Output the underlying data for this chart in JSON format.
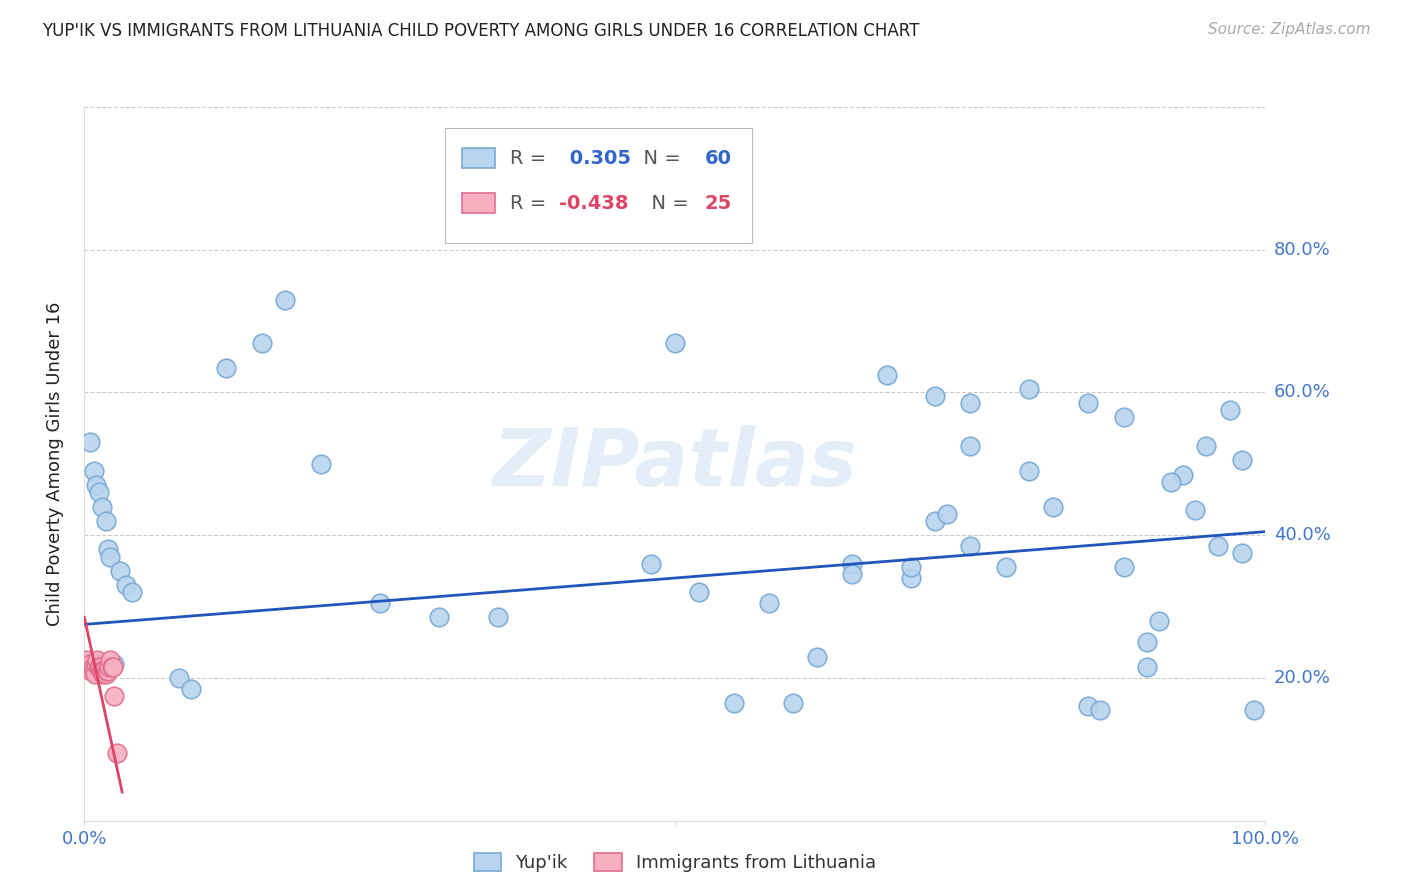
{
  "title": "YUP'IK VS IMMIGRANTS FROM LITHUANIA CHILD POVERTY AMONG GIRLS UNDER 16 CORRELATION CHART",
  "source": "Source: ZipAtlas.com",
  "ylabel": "Child Poverty Among Girls Under 16",
  "watermark": "ZIPatlas",
  "yupik_R": 0.305,
  "yupik_N": 60,
  "lithuania_R": -0.438,
  "lithuania_N": 25,
  "yupik_color": "#b8d4ee",
  "yupik_edge_color": "#7aaad4",
  "lithuania_color": "#f8b0c0",
  "lithuania_edge_color": "#e07090",
  "trend_blue": "#2255bb",
  "trend_pink": "#dd4466",
  "yupik_x": [
    0.005,
    0.008,
    0.01,
    0.012,
    0.015,
    0.018,
    0.02,
    0.022,
    0.025,
    0.03,
    0.035,
    0.04,
    0.08,
    0.09,
    0.12,
    0.15,
    0.17,
    0.2,
    0.25,
    0.3,
    0.35,
    0.48,
    0.5,
    0.52,
    0.55,
    0.58,
    0.6,
    0.62,
    0.65,
    0.68,
    0.7,
    0.72,
    0.73,
    0.75,
    0.78,
    0.8,
    0.82,
    0.85,
    0.86,
    0.88,
    0.9,
    0.91,
    0.93,
    0.95,
    0.97,
    0.98,
    0.99,
    0.72,
    0.75,
    0.8,
    0.85,
    0.88,
    0.92,
    0.94,
    0.96,
    0.98,
    0.65,
    0.7,
    0.75,
    0.9
  ],
  "yupik_y": [
    0.53,
    0.49,
    0.47,
    0.46,
    0.44,
    0.42,
    0.38,
    0.37,
    0.22,
    0.35,
    0.33,
    0.32,
    0.2,
    0.185,
    0.635,
    0.67,
    0.73,
    0.5,
    0.305,
    0.285,
    0.285,
    0.36,
    0.67,
    0.32,
    0.165,
    0.305,
    0.165,
    0.23,
    0.36,
    0.625,
    0.34,
    0.42,
    0.43,
    0.525,
    0.355,
    0.49,
    0.44,
    0.16,
    0.155,
    0.355,
    0.25,
    0.28,
    0.485,
    0.525,
    0.575,
    0.375,
    0.155,
    0.595,
    0.585,
    0.605,
    0.585,
    0.565,
    0.475,
    0.435,
    0.385,
    0.505,
    0.345,
    0.355,
    0.385,
    0.215
  ],
  "lithuania_x": [
    0.002,
    0.003,
    0.004,
    0.005,
    0.006,
    0.007,
    0.008,
    0.009,
    0.01,
    0.011,
    0.012,
    0.013,
    0.014,
    0.015,
    0.016,
    0.017,
    0.018,
    0.019,
    0.02,
    0.021,
    0.022,
    0.023,
    0.024,
    0.025,
    0.028
  ],
  "lithuania_y": [
    0.225,
    0.215,
    0.215,
    0.22,
    0.21,
    0.215,
    0.21,
    0.205,
    0.22,
    0.225,
    0.215,
    0.215,
    0.21,
    0.21,
    0.205,
    0.21,
    0.205,
    0.21,
    0.21,
    0.215,
    0.225,
    0.215,
    0.215,
    0.175,
    0.095
  ],
  "yupik_trend": [
    0.0,
    1.0,
    0.275,
    0.405
  ],
  "lithuania_trend": [
    0.0,
    0.032,
    0.285,
    0.04
  ],
  "xlim": [
    0,
    1
  ],
  "ylim": [
    0,
    1
  ],
  "ytick_positions": [
    0.2,
    0.4,
    0.6,
    0.8
  ],
  "ytick_labels": [
    "20.0%",
    "40.0%",
    "60.0%",
    "80.0%"
  ],
  "xtick_positions": [
    0.0,
    0.5,
    1.0
  ],
  "xtick_labels": [
    "0.0%",
    "",
    "100.0%"
  ],
  "background_color": "#ffffff",
  "grid_color": "#cccccc",
  "title_color": "#222222",
  "tick_label_color": "#4477cc"
}
